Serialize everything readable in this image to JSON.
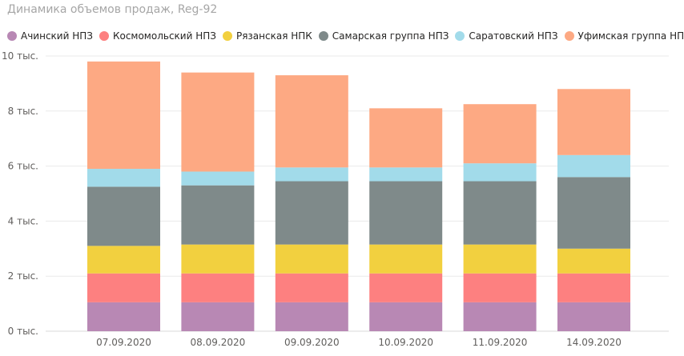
{
  "chart_data": {
    "type": "bar",
    "stacked": true,
    "title": "Динамика объемов продаж, Reg-92",
    "categories": [
      "07.09.2020",
      "08.09.2020",
      "09.09.2020",
      "10.09.2020",
      "11.09.2020",
      "14.09.2020"
    ],
    "series": [
      {
        "name": "Ачинский НПЗ",
        "color": "#b888b4",
        "values": [
          1050,
          1050,
          1050,
          1050,
          1050,
          1050
        ]
      },
      {
        "name": "Космомольский НПЗ",
        "color": "#fd8080",
        "values": [
          1050,
          1050,
          1050,
          1050,
          1050,
          1050
        ]
      },
      {
        "name": "Рязанская НПК",
        "color": "#f2d03f",
        "values": [
          1000,
          1050,
          1050,
          1050,
          1050,
          900
        ]
      },
      {
        "name": "Самарская группа НПЗ",
        "color": "#7f8a8a",
        "values": [
          2150,
          2150,
          2300,
          2300,
          2300,
          2600
        ]
      },
      {
        "name": "Саратовский НПЗ",
        "color": "#a2dbea",
        "values": [
          650,
          500,
          500,
          500,
          650,
          800
        ]
      },
      {
        "name": "Уфимская группа НПЗ",
        "color": "#fda983",
        "values": [
          3900,
          3600,
          3350,
          2150,
          2150,
          2400
        ]
      }
    ],
    "y_tick_labels": [
      "0 тыс.",
      "2 тыс.",
      "4 тыс.",
      "6 тыс.",
      "8 тыс.",
      "10 тыс."
    ],
    "y_ticks": [
      0,
      2000,
      4000,
      6000,
      8000,
      10000
    ],
    "ylim": [
      0,
      10000
    ],
    "xlabel": "",
    "ylabel": "",
    "grid": true,
    "legend_position": "top-left"
  }
}
